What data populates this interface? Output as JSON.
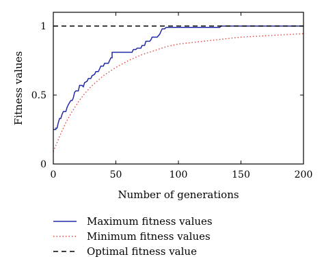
{
  "chart_data": {
    "type": "line",
    "title": "",
    "xlabel": "Number of generations",
    "ylabel": "Fitness values",
    "xlim": [
      0,
      200
    ],
    "ylim": [
      0,
      1.1
    ],
    "xticks": [
      0,
      50,
      100,
      150,
      200
    ],
    "xtick_labels": [
      "0",
      "50",
      "100",
      "150",
      "200"
    ],
    "yticks": [
      0,
      0.5,
      1
    ],
    "ytick_labels": [
      "0",
      "0.5",
      "1"
    ],
    "grid": false,
    "legend_position": "below",
    "series": [
      {
        "name": "Maximum fitness values",
        "style": "solid",
        "color": "#1f2aa6",
        "points": [
          [
            0,
            0.25
          ],
          [
            2,
            0.25
          ],
          [
            2,
            0.26
          ],
          [
            3,
            0.26
          ],
          [
            4,
            0.3
          ],
          [
            5,
            0.33
          ],
          [
            6,
            0.33
          ],
          [
            7,
            0.36
          ],
          [
            8,
            0.38
          ],
          [
            10,
            0.38
          ],
          [
            11,
            0.41
          ],
          [
            12,
            0.43
          ],
          [
            14,
            0.46
          ],
          [
            15,
            0.46
          ],
          [
            16,
            0.48
          ],
          [
            17,
            0.52
          ],
          [
            18,
            0.53
          ],
          [
            20,
            0.53
          ],
          [
            21,
            0.57
          ],
          [
            23,
            0.57
          ],
          [
            24,
            0.56
          ],
          [
            25,
            0.59
          ],
          [
            27,
            0.6
          ],
          [
            28,
            0.62
          ],
          [
            30,
            0.62
          ],
          [
            31,
            0.64
          ],
          [
            33,
            0.65
          ],
          [
            34,
            0.67
          ],
          [
            36,
            0.67
          ],
          [
            37,
            0.69
          ],
          [
            38,
            0.71
          ],
          [
            40,
            0.71
          ],
          [
            41,
            0.73
          ],
          [
            44,
            0.73
          ],
          [
            45,
            0.75
          ],
          [
            46,
            0.77
          ],
          [
            47,
            0.77
          ],
          [
            47,
            0.81
          ],
          [
            63,
            0.81
          ],
          [
            64,
            0.83
          ],
          [
            66,
            0.83
          ],
          [
            67,
            0.84
          ],
          [
            70,
            0.84
          ],
          [
            71,
            0.86
          ],
          [
            73,
            0.86
          ],
          [
            74,
            0.89
          ],
          [
            77,
            0.89
          ],
          [
            78,
            0.9
          ],
          [
            79,
            0.92
          ],
          [
            83,
            0.92
          ],
          [
            85,
            0.94
          ],
          [
            86,
            0.96
          ],
          [
            87,
            0.98
          ],
          [
            89,
            0.98
          ],
          [
            90,
            0.99
          ],
          [
            133,
            0.99
          ],
          [
            134,
            1
          ],
          [
            200,
            1
          ]
        ]
      },
      {
        "name": "Minimum fitness values",
        "style": "dotted",
        "color": "#e0443a",
        "points": [
          [
            0,
            0.09
          ],
          [
            5,
            0.2
          ],
          [
            10,
            0.3
          ],
          [
            15,
            0.38
          ],
          [
            20,
            0.45
          ],
          [
            25,
            0.51
          ],
          [
            30,
            0.56
          ],
          [
            40,
            0.64
          ],
          [
            50,
            0.7
          ],
          [
            60,
            0.75
          ],
          [
            70,
            0.79
          ],
          [
            80,
            0.82
          ],
          [
            90,
            0.85
          ],
          [
            100,
            0.87
          ],
          [
            110,
            0.88
          ],
          [
            120,
            0.89
          ],
          [
            130,
            0.9
          ],
          [
            140,
            0.91
          ],
          [
            150,
            0.92
          ],
          [
            160,
            0.925
          ],
          [
            170,
            0.93
          ],
          [
            180,
            0.935
          ],
          [
            190,
            0.94
          ],
          [
            200,
            0.945
          ]
        ]
      },
      {
        "name": "Optimal fitness value",
        "style": "dashed",
        "color": "#000000",
        "points": [
          [
            0,
            1
          ],
          [
            200,
            1
          ]
        ]
      }
    ]
  }
}
